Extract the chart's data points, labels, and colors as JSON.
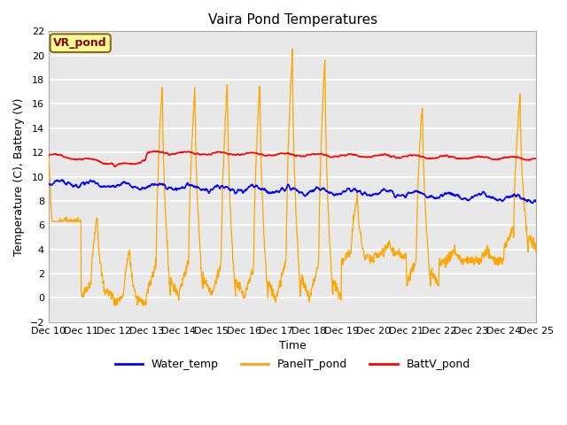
{
  "title": "Vaira Pond Temperatures",
  "xlabel": "Time",
  "ylabel": "Temperature (C), Battery (V)",
  "xlim": [
    0,
    15
  ],
  "ylim": [
    -2,
    22
  ],
  "yticks": [
    -2,
    0,
    2,
    4,
    6,
    8,
    10,
    12,
    14,
    16,
    18,
    20,
    22
  ],
  "xtick_labels": [
    "Dec 10",
    "Dec 11",
    "Dec 12",
    "Dec 13",
    "Dec 14",
    "Dec 15",
    "Dec 16",
    "Dec 17",
    "Dec 18",
    "Dec 19",
    "Dec 20",
    "Dec 21",
    "Dec 22",
    "Dec 23",
    "Dec 24",
    "Dec 25"
  ],
  "water_temp_color": "blue",
  "panel_temp_color": "orange",
  "batt_color": "red",
  "legend_labels": [
    "Water_temp",
    "PanelT_pond",
    "BattV_pond"
  ],
  "annotation_text": "VR_pond",
  "bg_color": "#e8e8e8",
  "day_peaks": [
    12.3,
    7.0,
    4.0,
    18.0,
    17.5,
    18.0,
    18.0,
    20.5,
    20.0,
    8.5,
    4.5,
    16.2,
    4.0,
    4.0,
    16.8
  ],
  "day_min_vals": [
    6.3,
    0.1,
    -0.5,
    0.1,
    0.4,
    0.1,
    -0.2,
    0.1,
    -0.2,
    3.0,
    3.5,
    1.0,
    3.0,
    3.0,
    4.0
  ]
}
